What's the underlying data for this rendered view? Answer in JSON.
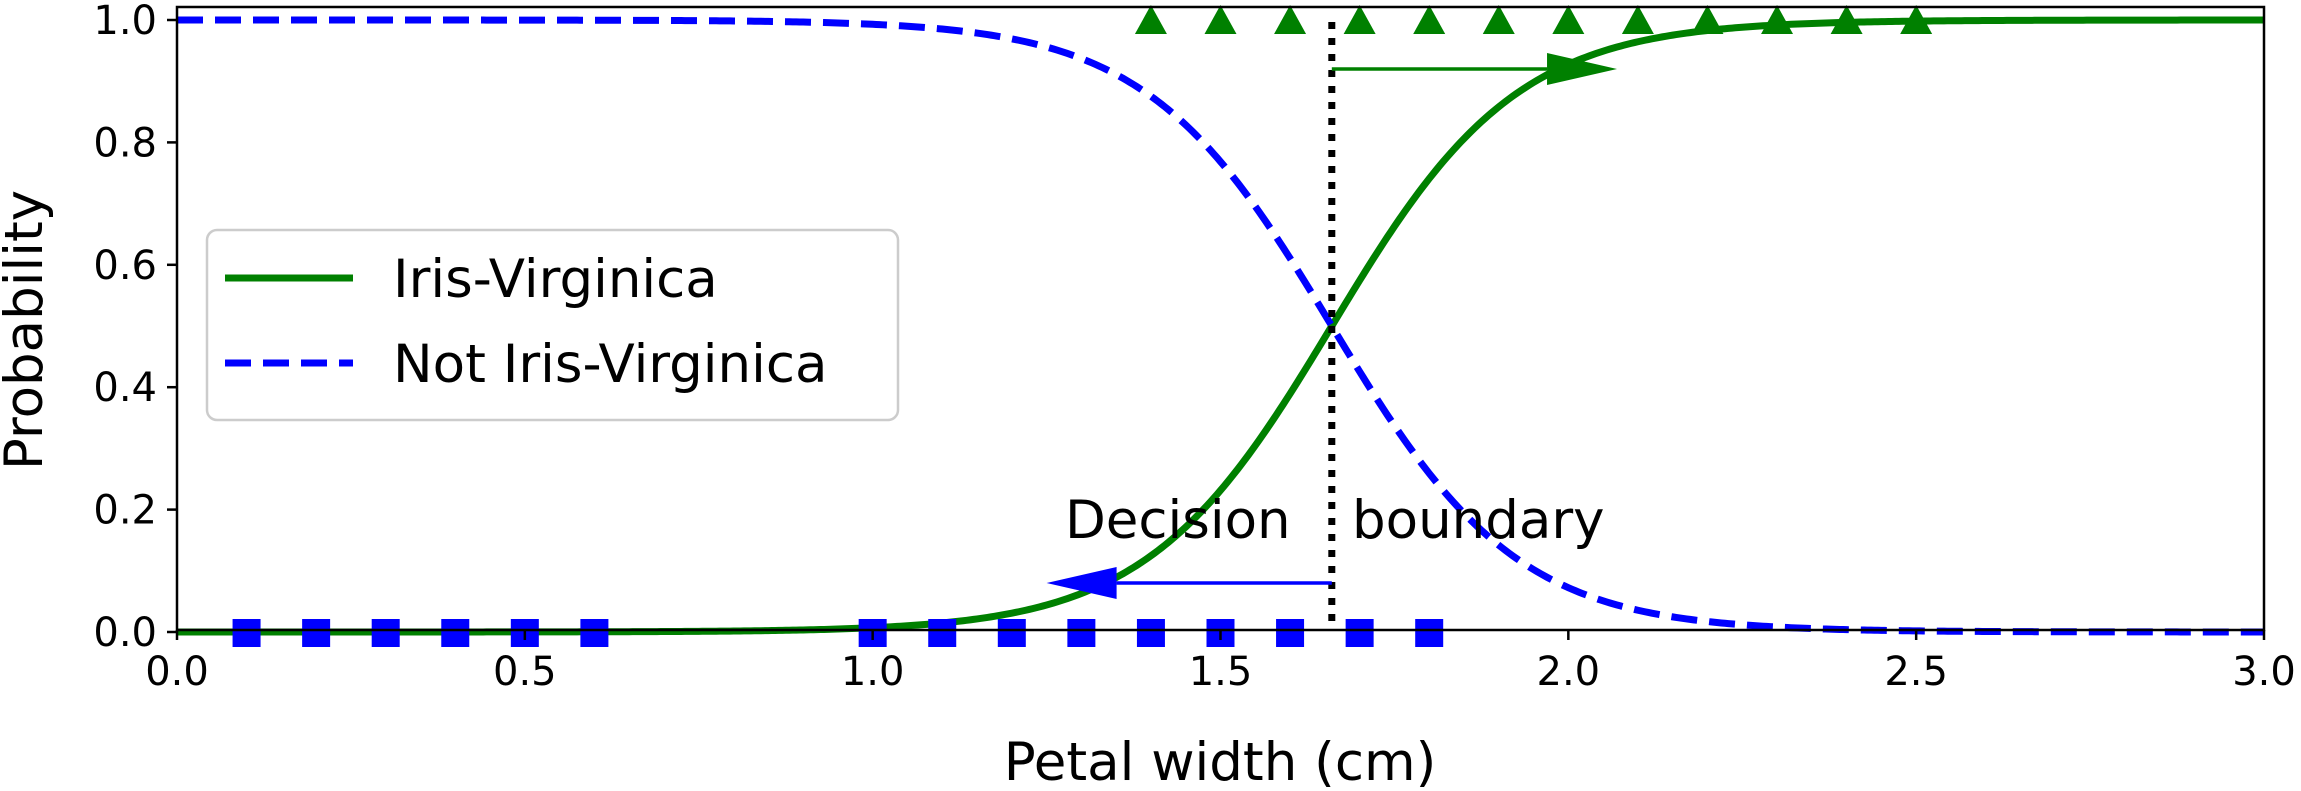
{
  "chart_data": {
    "type": "line",
    "xlabel": "Petal width (cm)",
    "ylabel": "Probability",
    "xlim": [
      0.0,
      3.0
    ],
    "ylim": [
      0.0,
      1.0
    ],
    "xticks": [
      "0.0",
      "0.5",
      "1.0",
      "1.5",
      "2.0",
      "2.5",
      "3.0"
    ],
    "yticks": [
      "0.0",
      "0.2",
      "0.4",
      "0.6",
      "0.8",
      "1.0"
    ],
    "grid": false,
    "legend_position": "center-left",
    "decision_boundary": 1.66,
    "logistic_steepness": 7.5,
    "series": [
      {
        "name": "Iris-Virginica",
        "style": "solid",
        "color": "#008000",
        "function": "sigmoid"
      },
      {
        "name": "Not Iris-Virginica",
        "style": "dashed",
        "color": "#0000ff",
        "function": "one-minus-sigmoid"
      }
    ],
    "points_virginica": {
      "marker": "triangle",
      "color": "#008000",
      "y": 1.0,
      "x": [
        1.4,
        1.5,
        1.6,
        1.7,
        1.8,
        1.9,
        2.0,
        2.1,
        2.2,
        2.3,
        2.4,
        2.5
      ]
    },
    "points_not_virginica": {
      "marker": "square",
      "color": "#0000ff",
      "y": 0.0,
      "x": [
        0.1,
        0.2,
        0.3,
        0.4,
        0.5,
        0.6,
        1.0,
        1.1,
        1.2,
        1.3,
        1.4,
        1.5,
        1.6,
        1.7,
        1.8
      ]
    },
    "annotations": {
      "label_left": "Decision",
      "label_right": "boundary",
      "arrow_right": {
        "x_start": 1.66,
        "x_end": 2.07,
        "y": 0.92,
        "color": "#008000"
      },
      "arrow_left": {
        "x_start": 1.66,
        "x_end": 1.25,
        "y": 0.08,
        "color": "#0000ff"
      }
    }
  }
}
